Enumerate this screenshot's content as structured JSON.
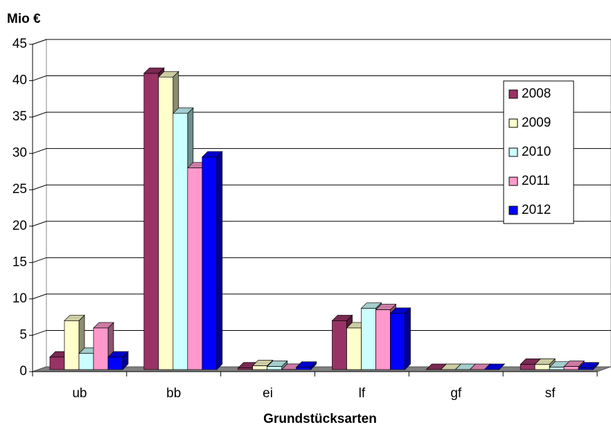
{
  "chart_data": {
    "type": "bar",
    "title": "Mio €",
    "x_label": "Grundstücksarten",
    "categories": [
      "ub",
      "bb",
      "ei",
      "lf",
      "gf",
      "sf"
    ],
    "series": [
      {
        "name": "2008",
        "color": "#993366",
        "values": [
          2,
          41,
          0.5,
          7,
          0.05,
          1
        ]
      },
      {
        "name": "2009",
        "color": "#ffffcc",
        "values": [
          7,
          40.5,
          0.8,
          6,
          0.1,
          1
        ]
      },
      {
        "name": "2010",
        "color": "#ccffff",
        "values": [
          2.5,
          35.5,
          0.7,
          8.7,
          0.2,
          0.6
        ]
      },
      {
        "name": "2011",
        "color": "#ff99cc",
        "values": [
          6,
          28,
          0.3,
          8.5,
          0.1,
          0.7
        ]
      },
      {
        "name": "2012",
        "color": "#0000ff",
        "values": [
          2,
          29.5,
          0.6,
          8,
          0.1,
          0.5
        ]
      }
    ],
    "ylim": [
      0,
      45
    ],
    "yticks": [
      0,
      5,
      10,
      15,
      20,
      25,
      30,
      35,
      40,
      45
    ],
    "grid": true,
    "legend": "right"
  }
}
